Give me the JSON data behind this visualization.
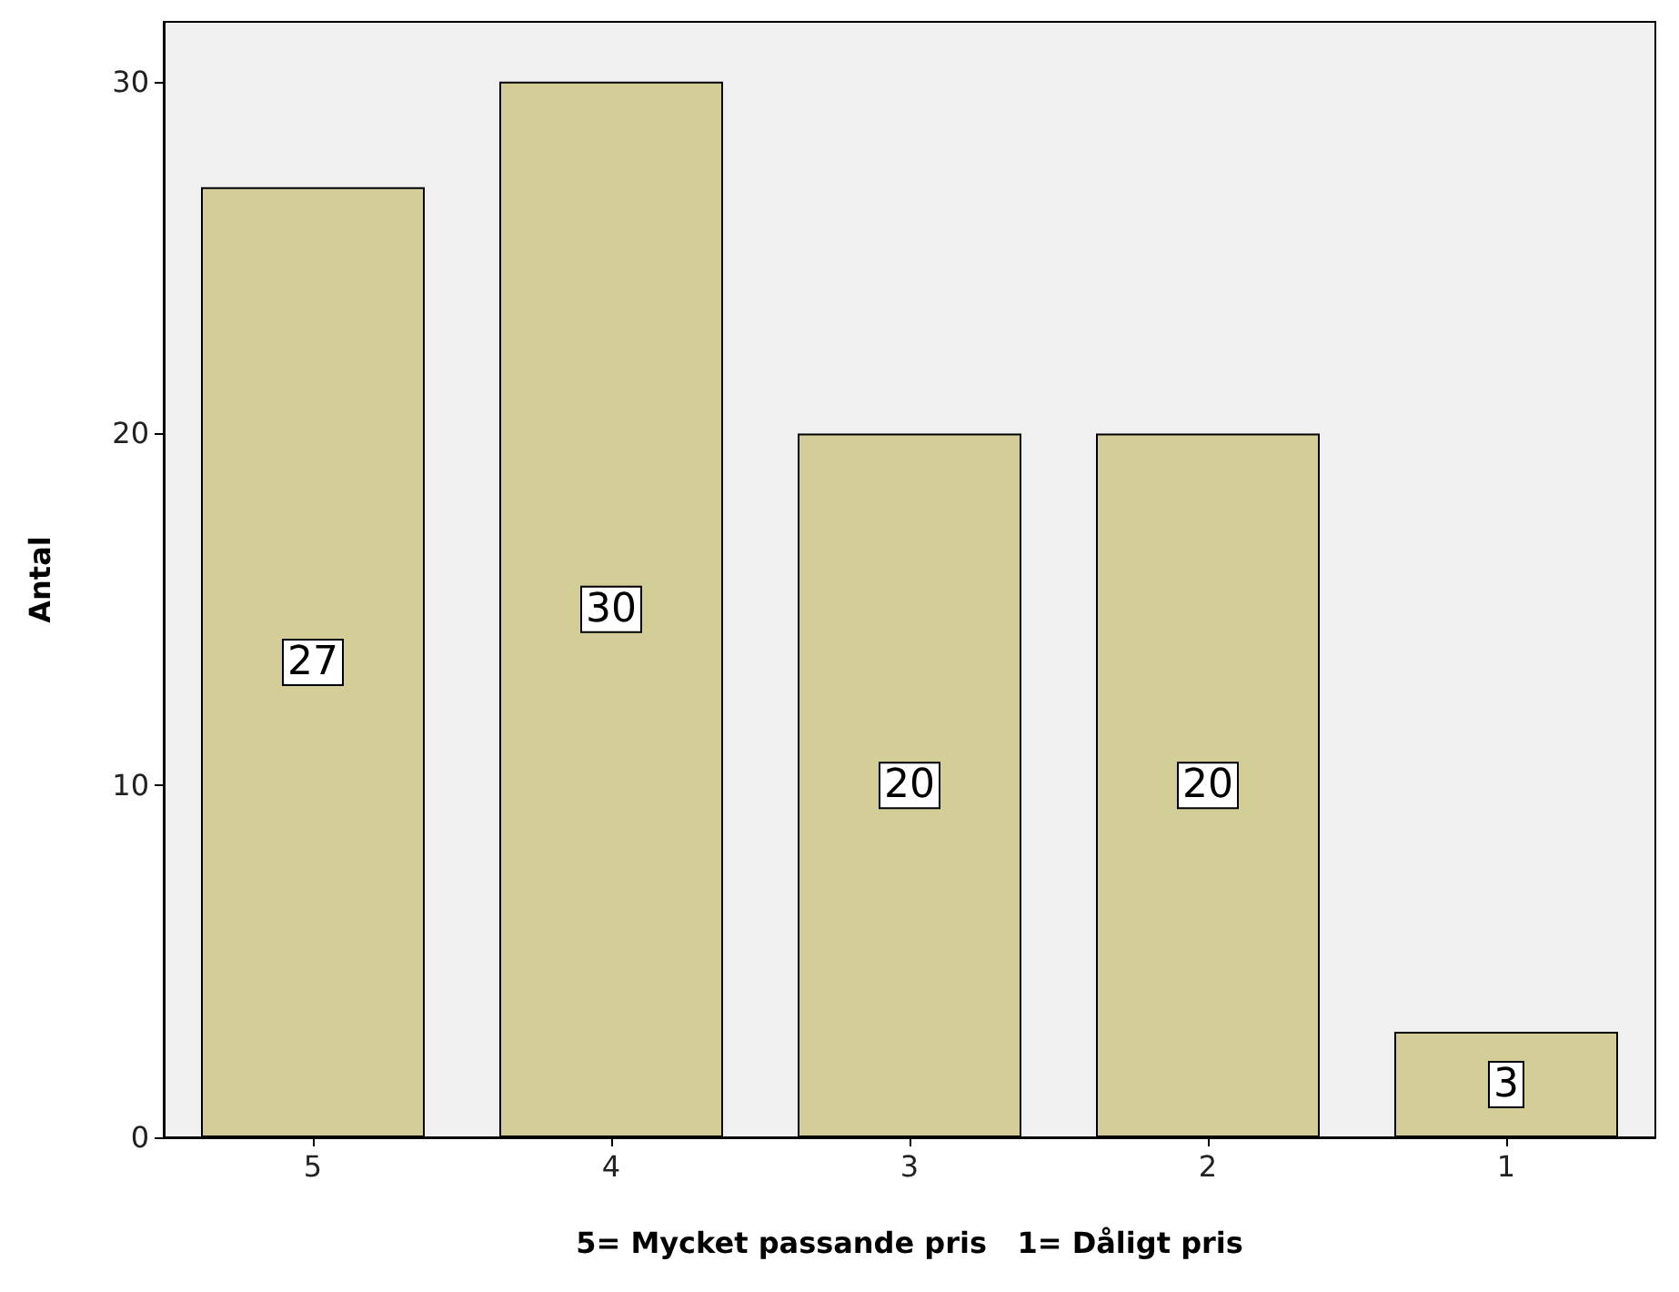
{
  "chart_data": {
    "type": "bar",
    "xlabel": "5= Mycket passande pris   1= Dåligt pris",
    "ylabel": "Antal",
    "categories": [
      "5",
      "4",
      "3",
      "2",
      "1"
    ],
    "values": [
      27,
      30,
      20,
      20,
      3
    ],
    "color": "#d3ce97",
    "ylim": [
      0,
      31.7
    ],
    "yticks": [
      0,
      10,
      20,
      30
    ],
    "grid": false,
    "data_labels": true
  }
}
